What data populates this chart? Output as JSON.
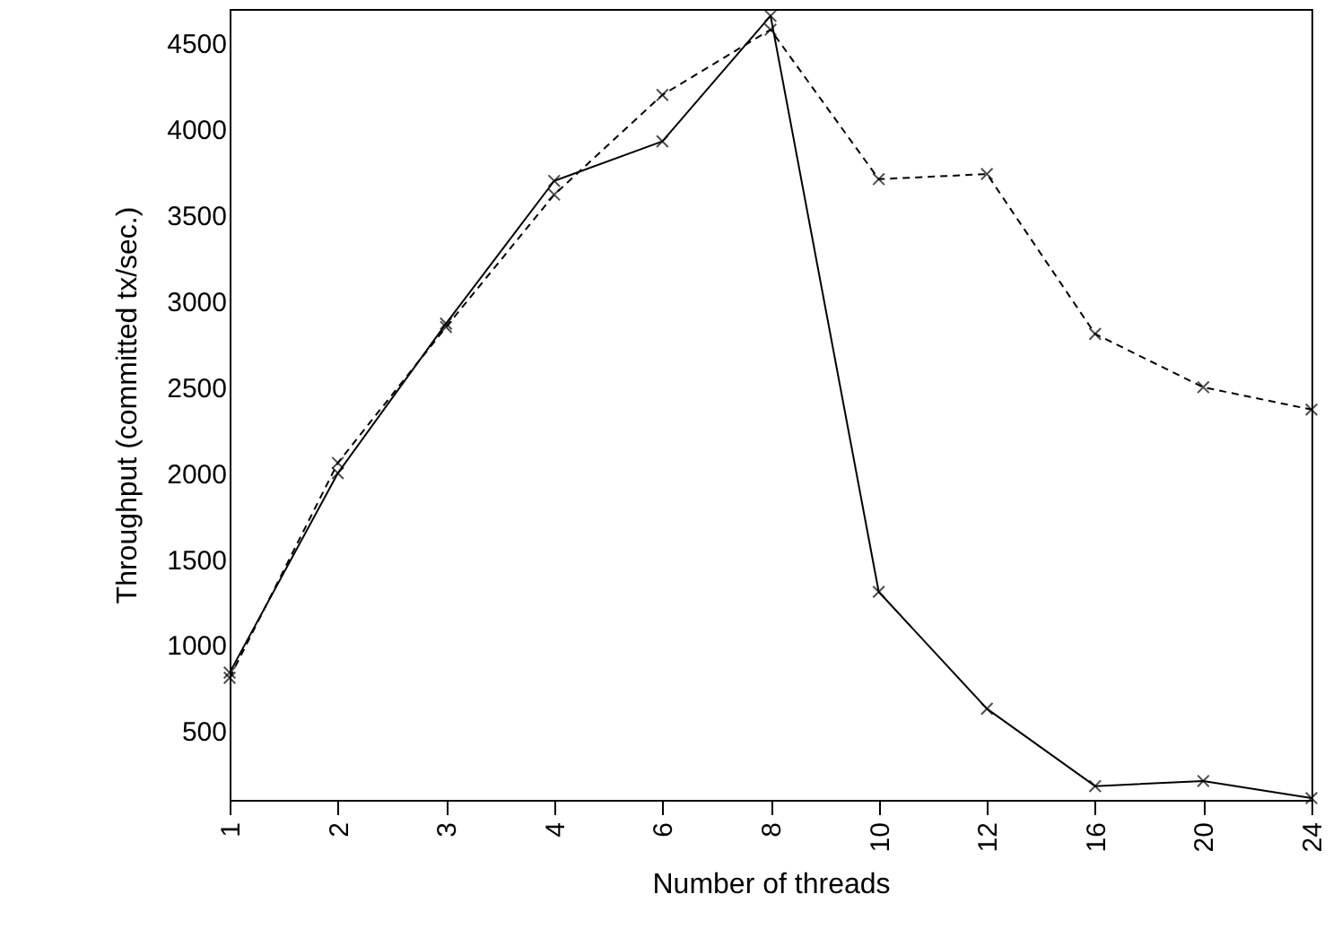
{
  "chart_data": {
    "type": "line",
    "xlabel": "Number of threads",
    "ylabel": "Throughput (committed tx/sec.)",
    "categories": [
      "1",
      "2",
      "3",
      "4",
      "6",
      "8",
      "10",
      "12",
      "16",
      "20",
      "24"
    ],
    "series": [
      {
        "color": "#000000",
        "line_style": "solid",
        "values": [
          840,
          2000,
          2870,
          3700,
          3930,
          4660,
          1310,
          630,
          180,
          210,
          110
        ]
      },
      {
        "color": "#000000",
        "line_style": "dashed",
        "values": [
          810,
          2060,
          2850,
          3620,
          4200,
          4580,
          3710,
          3740,
          2810,
          2500,
          2370
        ]
      }
    ],
    "ylim": [
      100,
      4700
    ],
    "yticks": [
      500,
      1000,
      1500,
      2000,
      2500,
      3000,
      3500,
      4000,
      4500
    ],
    "marker": "cross",
    "grid": false
  }
}
